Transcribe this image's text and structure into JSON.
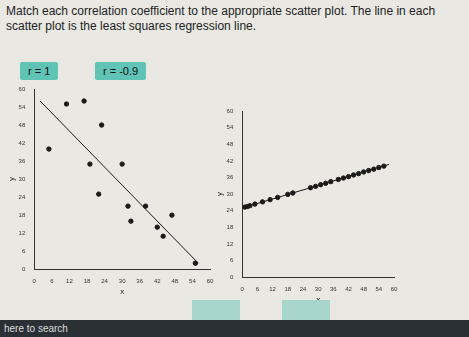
{
  "prompt": "Match each correlation coefficient to the appropriate scatter plot. The line in each scatter plot is the least squares regression line.",
  "choices": [
    "r = 1",
    "r = -0.9"
  ],
  "taskbar_search": "here to search",
  "chart_data": [
    {
      "type": "scatter",
      "xlabel": "x",
      "ylabel": "y",
      "x": [
        11,
        17,
        23,
        5,
        19,
        30,
        22,
        32,
        38,
        47,
        33,
        42,
        44,
        55
      ],
      "y": [
        55,
        56,
        48,
        40,
        35,
        35,
        25,
        21,
        21,
        18,
        16,
        14,
        11,
        2
      ],
      "line": {
        "x": [
          2,
          56
        ],
        "y": [
          56,
          2
        ]
      },
      "color": "#1a1a1a",
      "xlim": [
        0,
        60
      ],
      "xticks": [
        0,
        6,
        12,
        18,
        24,
        30,
        36,
        42,
        48,
        54,
        60
      ],
      "ylim": [
        0,
        60
      ],
      "yticks": [
        0,
        6,
        12,
        18,
        24,
        30,
        36,
        42,
        48,
        54,
        60
      ],
      "grid": false
    },
    {
      "type": "scatter",
      "xlabel": "x",
      "ylabel": "y",
      "x": [
        1,
        2,
        3,
        5,
        8,
        11,
        14,
        18,
        20,
        27,
        29,
        31,
        33,
        35,
        38,
        40,
        42,
        44,
        46,
        48,
        50,
        52,
        54,
        56
      ],
      "y": [
        25.3,
        25.5,
        25.8,
        26.4,
        27.2,
        28.0,
        28.8,
        29.9,
        30.4,
        32.3,
        32.8,
        33.4,
        33.9,
        34.5,
        35.3,
        35.8,
        36.3,
        36.9,
        37.4,
        38.0,
        38.5,
        39.0,
        39.6,
        40.1
      ],
      "line": {
        "x": [
          0,
          58
        ],
        "y": [
          25,
          40.7
        ]
      },
      "color": "#1a1a1a",
      "xlim": [
        0,
        60
      ],
      "xticks": [
        0,
        6,
        12,
        18,
        24,
        30,
        36,
        42,
        48,
        54,
        60
      ],
      "ylim": [
        0,
        60
      ],
      "yticks": [
        0,
        6,
        12,
        18,
        24,
        30,
        36,
        42,
        48,
        54,
        60
      ],
      "grid": false
    }
  ]
}
